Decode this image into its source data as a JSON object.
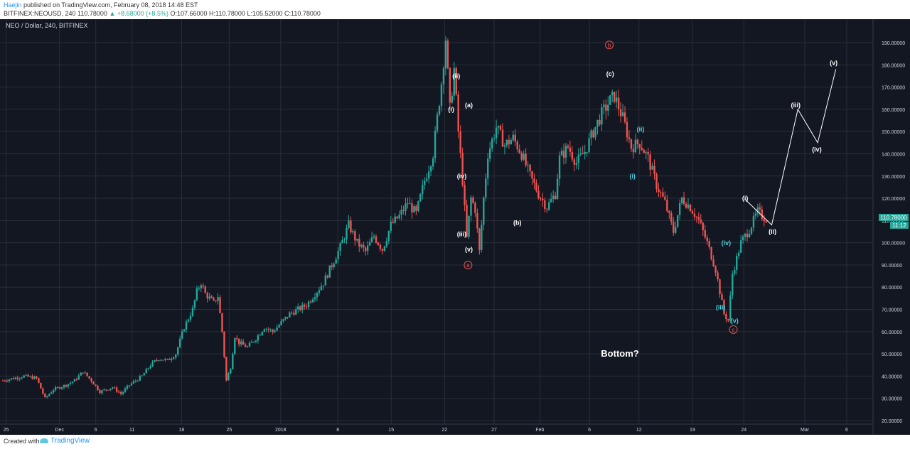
{
  "header": {
    "user": "Haejin",
    "published": "published on TradingView.com, February 08, 2018 14:48 EST",
    "symbol": "BITFINEX:NEOUSD, 240",
    "last": "110.78000",
    "change": "+8.68000 (+8.5%)",
    "open": "O:107.66000",
    "high": "H:110.78000",
    "low": "L:105.52000",
    "close": "C:110.78000"
  },
  "footer": {
    "created": "Created with",
    "brand": "TradingView"
  },
  "colors": {
    "background": "#131722",
    "up": "#26a69a",
    "down": "#ef5350",
    "grid": "#2a2e39",
    "text": "#d1d4dc",
    "wave_cyan": "#4dd0e1",
    "circle_red": "#ef5350",
    "price_tag": "#26a69a"
  },
  "chart_data": {
    "type": "candlestick",
    "title": "NEO / Dollar, 240, BITFINEX",
    "ylim": [
      18,
      200
    ],
    "y_ticks": [
      "190.00000",
      "180.00000",
      "170.00000",
      "160.00000",
      "150.00000",
      "140.00000",
      "130.00000",
      "120.00000",
      "110.00000",
      "100.00000",
      "90.00000",
      "80.00000",
      "70.00000",
      "60.00000",
      "50.00000",
      "40.00000",
      "30.00000",
      "20.00000"
    ],
    "x_ticks": [
      "25",
      "Dec",
      "6",
      "11",
      "18",
      "25",
      "2018",
      "8",
      "15",
      "22",
      "27",
      "Feb",
      "6",
      "12",
      "19",
      "24",
      "Mar",
      "6"
    ],
    "last_price": "110.78000",
    "countdown": "11:12",
    "price_path": [
      [
        0,
        38
      ],
      [
        5,
        40
      ],
      [
        8,
        39
      ],
      [
        10,
        30
      ],
      [
        12,
        34
      ],
      [
        15,
        36
      ],
      [
        17,
        38
      ],
      [
        19,
        42
      ],
      [
        21,
        38
      ],
      [
        23,
        33
      ],
      [
        26,
        35
      ],
      [
        28,
        32
      ],
      [
        30,
        36
      ],
      [
        33,
        40
      ],
      [
        35,
        45
      ],
      [
        37,
        48
      ],
      [
        39,
        47
      ],
      [
        41,
        50
      ],
      [
        43,
        62
      ],
      [
        45,
        70
      ],
      [
        46,
        78
      ],
      [
        47,
        82
      ],
      [
        48,
        77
      ],
      [
        50,
        73
      ],
      [
        51,
        76
      ],
      [
        52,
        60
      ],
      [
        53,
        38
      ],
      [
        54,
        44
      ],
      [
        55,
        58
      ],
      [
        56,
        55
      ],
      [
        58,
        53
      ],
      [
        60,
        57
      ],
      [
        62,
        62
      ],
      [
        64,
        60
      ],
      [
        66,
        64
      ],
      [
        68,
        68
      ],
      [
        70,
        70
      ],
      [
        72,
        72
      ],
      [
        74,
        77
      ],
      [
        76,
        82
      ],
      [
        78,
        90
      ],
      [
        80,
        98
      ],
      [
        82,
        108
      ],
      [
        84,
        100
      ],
      [
        86,
        96
      ],
      [
        88,
        103
      ],
      [
        90,
        97
      ],
      [
        92,
        108
      ],
      [
        94,
        112
      ],
      [
        96,
        118
      ],
      [
        98,
        113
      ],
      [
        100,
        128
      ],
      [
        102,
        140
      ],
      [
        104,
        172
      ],
      [
        105,
        192
      ],
      [
        106,
        160
      ],
      [
        107,
        178
      ],
      [
        108,
        150
      ],
      [
        109,
        128
      ],
      [
        110,
        102
      ],
      [
        111,
        120
      ],
      [
        112,
        115
      ],
      [
        113,
        96
      ],
      [
        114,
        120
      ],
      [
        115,
        140
      ],
      [
        117,
        152
      ],
      [
        119,
        144
      ],
      [
        121,
        147
      ],
      [
        123,
        140
      ],
      [
        125,
        130
      ],
      [
        127,
        122
      ],
      [
        129,
        116
      ],
      [
        131,
        122
      ],
      [
        132,
        138
      ],
      [
        134,
        143
      ],
      [
        136,
        136
      ],
      [
        138,
        141
      ],
      [
        140,
        150
      ],
      [
        142,
        158
      ],
      [
        144,
        164
      ],
      [
        145,
        166
      ],
      [
        147,
        156
      ],
      [
        149,
        143
      ],
      [
        151,
        145
      ],
      [
        153,
        138
      ],
      [
        155,
        126
      ],
      [
        157,
        118
      ],
      [
        159,
        105
      ],
      [
        161,
        120
      ],
      [
        163,
        116
      ],
      [
        165,
        110
      ],
      [
        167,
        100
      ],
      [
        169,
        88
      ],
      [
        170,
        78
      ],
      [
        171,
        68
      ],
      [
        172,
        65
      ],
      [
        173,
        86
      ],
      [
        175,
        100
      ],
      [
        177,
        106
      ],
      [
        179,
        114
      ],
      [
        180,
        112
      ],
      [
        181,
        110.78
      ]
    ],
    "annotations_white": [
      {
        "label": "(ii)",
        "t": 107.5,
        "p": 174
      },
      {
        "label": "(i)",
        "t": 106.3,
        "p": 159
      },
      {
        "label": "(a)",
        "t": 110.5,
        "p": 161
      },
      {
        "label": "(iv)",
        "t": 108.8,
        "p": 129
      },
      {
        "label": "(iii)",
        "t": 108.8,
        "p": 103
      },
      {
        "label": "(v)",
        "t": 110.5,
        "p": 96
      },
      {
        "label": "(b)",
        "t": 122,
        "p": 108
      },
      {
        "label": "(c)",
        "t": 144,
        "p": 175
      },
      {
        "label": "(i)",
        "t": 176,
        "p": 119
      },
      {
        "label": "(ii)",
        "t": 182.5,
        "p": 104
      },
      {
        "label": "(iii)",
        "t": 188,
        "p": 161
      },
      {
        "label": "(iv)",
        "t": 193,
        "p": 141
      },
      {
        "label": "(v)",
        "t": 197,
        "p": 180
      }
    ],
    "annotations_cyan": [
      {
        "label": "(ii)",
        "t": 151.2,
        "p": 150
      },
      {
        "label": "(i)",
        "t": 149.3,
        "p": 129
      },
      {
        "label": "(iv)",
        "t": 171.5,
        "p": 99
      },
      {
        "label": "(iii)",
        "t": 170.2,
        "p": 70
      },
      {
        "label": "(v)",
        "t": 173.5,
        "p": 64
      }
    ],
    "annotations_circle": [
      {
        "label": "a",
        "t": 110.3,
        "p": 89
      },
      {
        "label": "b",
        "t": 143.8,
        "p": 188
      },
      {
        "label": "c",
        "t": 173.2,
        "p": 60
      }
    ],
    "projection": [
      [
        176,
        119.5
      ],
      [
        182.3,
        108
      ],
      [
        188.5,
        160
      ],
      [
        193.2,
        145
      ],
      [
        197.5,
        178
      ]
    ],
    "note": "Bottom?"
  }
}
